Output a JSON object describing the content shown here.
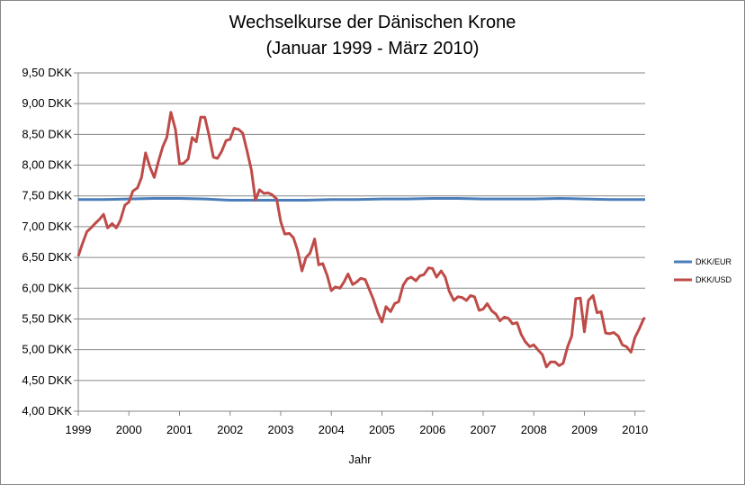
{
  "chart_data": {
    "type": "line",
    "title": "Wechselkurse der Dänischen Krone",
    "subtitle": "(Januar 1999 - März 2010)",
    "xlabel": "Jahr",
    "ylabel": "",
    "x_ticks": [
      "1999",
      "2000",
      "2001",
      "2002",
      "2003",
      "2004",
      "2005",
      "2006",
      "2007",
      "2008",
      "2009",
      "2010"
    ],
    "y_ticks": [
      "4,00 DKK",
      "4,50 DKK",
      "5,00 DKK",
      "5,50 DKK",
      "6,00 DKK",
      "6,50 DKK",
      "7,00 DKK",
      "7,50 DKK",
      "8,00 DKK",
      "8,50 DKK",
      "9,00 DKK",
      "9,50 DKK"
    ],
    "ylim": [
      4.0,
      9.5
    ],
    "xlim": [
      1999.0,
      2010.2
    ],
    "grid": "horizontal",
    "legend_position": "right",
    "series": [
      {
        "name": "DKK/EUR",
        "color": "#4a7ebb",
        "points": [
          [
            1999.0,
            7.44
          ],
          [
            1999.5,
            7.44
          ],
          [
            2000.0,
            7.45
          ],
          [
            2000.5,
            7.46
          ],
          [
            2001.0,
            7.46
          ],
          [
            2001.5,
            7.45
          ],
          [
            2002.0,
            7.43
          ],
          [
            2002.5,
            7.43
          ],
          [
            2003.0,
            7.43
          ],
          [
            2003.5,
            7.43
          ],
          [
            2004.0,
            7.44
          ],
          [
            2004.5,
            7.44
          ],
          [
            2005.0,
            7.45
          ],
          [
            2005.5,
            7.45
          ],
          [
            2006.0,
            7.46
          ],
          [
            2006.5,
            7.46
          ],
          [
            2007.0,
            7.45
          ],
          [
            2007.5,
            7.45
          ],
          [
            2008.0,
            7.45
          ],
          [
            2008.5,
            7.46
          ],
          [
            2009.0,
            7.45
          ],
          [
            2009.5,
            7.44
          ],
          [
            2010.0,
            7.44
          ],
          [
            2010.2,
            7.44
          ]
        ]
      },
      {
        "name": "DKK/USD",
        "color": "#be4b48",
        "points": [
          [
            1999.0,
            6.52
          ],
          [
            1999.08,
            6.72
          ],
          [
            1999.17,
            6.92
          ],
          [
            1999.25,
            6.98
          ],
          [
            1999.33,
            7.05
          ],
          [
            1999.42,
            7.12
          ],
          [
            1999.5,
            7.2
          ],
          [
            1999.58,
            6.98
          ],
          [
            1999.67,
            7.05
          ],
          [
            1999.75,
            6.98
          ],
          [
            1999.83,
            7.1
          ],
          [
            1999.92,
            7.35
          ],
          [
            2000.0,
            7.4
          ],
          [
            2000.08,
            7.58
          ],
          [
            2000.17,
            7.63
          ],
          [
            2000.25,
            7.8
          ],
          [
            2000.33,
            8.2
          ],
          [
            2000.42,
            7.96
          ],
          [
            2000.5,
            7.8
          ],
          [
            2000.58,
            8.05
          ],
          [
            2000.67,
            8.3
          ],
          [
            2000.75,
            8.45
          ],
          [
            2000.83,
            8.86
          ],
          [
            2000.92,
            8.58
          ],
          [
            2001.0,
            8.02
          ],
          [
            2001.08,
            8.03
          ],
          [
            2001.17,
            8.1
          ],
          [
            2001.25,
            8.45
          ],
          [
            2001.33,
            8.38
          ],
          [
            2001.42,
            8.78
          ],
          [
            2001.5,
            8.78
          ],
          [
            2001.58,
            8.5
          ],
          [
            2001.67,
            8.13
          ],
          [
            2001.75,
            8.11
          ],
          [
            2001.83,
            8.22
          ],
          [
            2001.92,
            8.4
          ],
          [
            2002.0,
            8.42
          ],
          [
            2002.08,
            8.6
          ],
          [
            2002.17,
            8.58
          ],
          [
            2002.25,
            8.52
          ],
          [
            2002.33,
            8.25
          ],
          [
            2002.42,
            7.92
          ],
          [
            2002.5,
            7.43
          ],
          [
            2002.58,
            7.6
          ],
          [
            2002.67,
            7.54
          ],
          [
            2002.75,
            7.55
          ],
          [
            2002.83,
            7.52
          ],
          [
            2002.92,
            7.45
          ],
          [
            2003.0,
            7.08
          ],
          [
            2003.08,
            6.88
          ],
          [
            2003.17,
            6.89
          ],
          [
            2003.25,
            6.82
          ],
          [
            2003.33,
            6.62
          ],
          [
            2003.42,
            6.28
          ],
          [
            2003.5,
            6.5
          ],
          [
            2003.58,
            6.57
          ],
          [
            2003.67,
            6.8
          ],
          [
            2003.75,
            6.38
          ],
          [
            2003.83,
            6.4
          ],
          [
            2003.92,
            6.2
          ],
          [
            2004.0,
            5.96
          ],
          [
            2004.08,
            6.02
          ],
          [
            2004.17,
            6.0
          ],
          [
            2004.25,
            6.1
          ],
          [
            2004.33,
            6.23
          ],
          [
            2004.42,
            6.06
          ],
          [
            2004.5,
            6.1
          ],
          [
            2004.58,
            6.16
          ],
          [
            2004.67,
            6.14
          ],
          [
            2004.75,
            5.98
          ],
          [
            2004.83,
            5.82
          ],
          [
            2004.92,
            5.6
          ],
          [
            2005.0,
            5.45
          ],
          [
            2005.08,
            5.7
          ],
          [
            2005.17,
            5.62
          ],
          [
            2005.25,
            5.75
          ],
          [
            2005.33,
            5.78
          ],
          [
            2005.42,
            6.05
          ],
          [
            2005.5,
            6.15
          ],
          [
            2005.58,
            6.18
          ],
          [
            2005.67,
            6.12
          ],
          [
            2005.75,
            6.2
          ],
          [
            2005.83,
            6.22
          ],
          [
            2005.92,
            6.33
          ],
          [
            2006.0,
            6.32
          ],
          [
            2006.08,
            6.18
          ],
          [
            2006.17,
            6.28
          ],
          [
            2006.25,
            6.18
          ],
          [
            2006.33,
            5.95
          ],
          [
            2006.42,
            5.8
          ],
          [
            2006.5,
            5.86
          ],
          [
            2006.58,
            5.85
          ],
          [
            2006.67,
            5.8
          ],
          [
            2006.75,
            5.88
          ],
          [
            2006.83,
            5.86
          ],
          [
            2006.92,
            5.64
          ],
          [
            2007.0,
            5.66
          ],
          [
            2007.08,
            5.75
          ],
          [
            2007.17,
            5.63
          ],
          [
            2007.25,
            5.58
          ],
          [
            2007.33,
            5.47
          ],
          [
            2007.42,
            5.53
          ],
          [
            2007.5,
            5.51
          ],
          [
            2007.58,
            5.42
          ],
          [
            2007.67,
            5.44
          ],
          [
            2007.75,
            5.25
          ],
          [
            2007.83,
            5.13
          ],
          [
            2007.92,
            5.05
          ],
          [
            2008.0,
            5.08
          ],
          [
            2008.08,
            5.0
          ],
          [
            2008.17,
            4.92
          ],
          [
            2008.25,
            4.72
          ],
          [
            2008.33,
            4.8
          ],
          [
            2008.42,
            4.8
          ],
          [
            2008.5,
            4.74
          ],
          [
            2008.58,
            4.78
          ],
          [
            2008.67,
            5.05
          ],
          [
            2008.75,
            5.22
          ],
          [
            2008.83,
            5.83
          ],
          [
            2008.92,
            5.84
          ],
          [
            2009.0,
            5.29
          ],
          [
            2009.08,
            5.8
          ],
          [
            2009.17,
            5.88
          ],
          [
            2009.25,
            5.6
          ],
          [
            2009.33,
            5.62
          ],
          [
            2009.42,
            5.27
          ],
          [
            2009.5,
            5.26
          ],
          [
            2009.58,
            5.28
          ],
          [
            2009.67,
            5.22
          ],
          [
            2009.75,
            5.08
          ],
          [
            2009.83,
            5.05
          ],
          [
            2009.92,
            4.96
          ],
          [
            2010.0,
            5.2
          ],
          [
            2010.08,
            5.33
          ],
          [
            2010.17,
            5.5
          ],
          [
            2010.2,
            5.52
          ]
        ]
      }
    ]
  }
}
